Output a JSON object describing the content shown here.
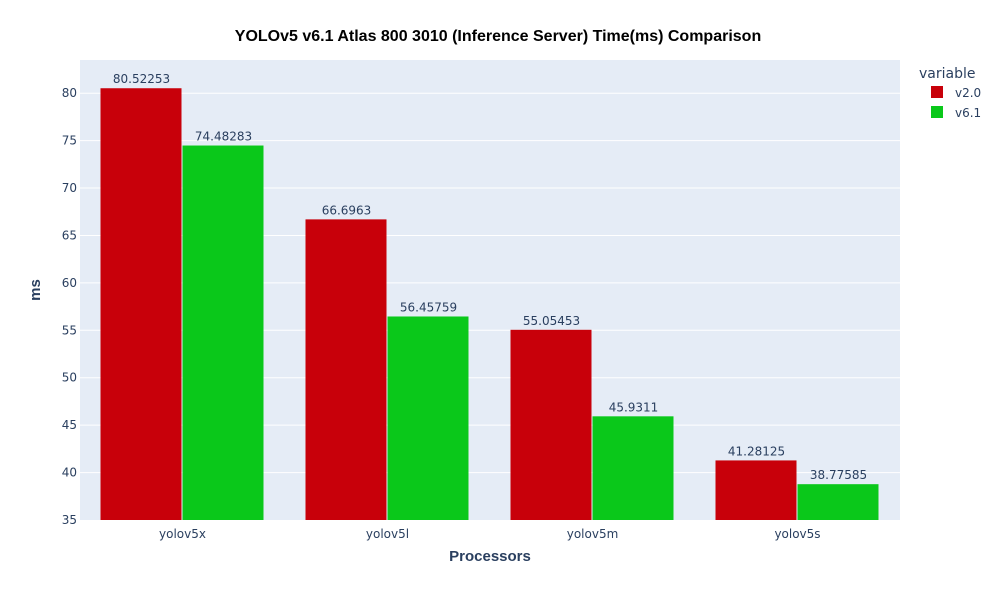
{
  "chart_data": {
    "type": "bar",
    "title": "YOLOv5 v6.1 Atlas 800 3010 (Inference Server) Time(ms) Comparison",
    "xlabel": "Processors",
    "ylabel": "ms",
    "categories": [
      "yolov5x",
      "yolov5l",
      "yolov5m",
      "yolov5s"
    ],
    "series": [
      {
        "name": "v2.0",
        "values": [
          80.52253,
          66.6963,
          55.05453,
          41.28125
        ],
        "labels": [
          "80.52253",
          "66.6963",
          "55.05453",
          "41.28125"
        ],
        "color": "#c8000a"
      },
      {
        "name": "v6.1",
        "values": [
          74.48283,
          56.45759,
          45.9311,
          38.77585
        ],
        "labels": [
          "74.48283",
          "56.45759",
          "45.9311",
          "38.77585"
        ],
        "color": "#0ac81a"
      }
    ],
    "ylim": [
      35,
      83.5
    ],
    "yticks": [
      35,
      40,
      45,
      50,
      55,
      60,
      65,
      70,
      75,
      80
    ],
    "legend_title": "variable",
    "legend_position": "top-right",
    "grid": true,
    "plot_background": "#e5ecf6"
  }
}
